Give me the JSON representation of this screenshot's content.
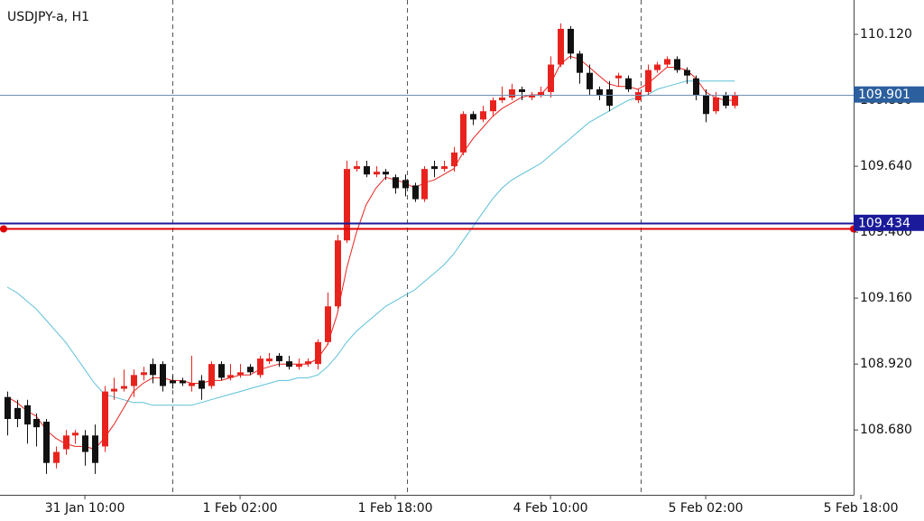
{
  "chart_data": {
    "type": "candlestick",
    "title": "USDJPY-a, H1",
    "xlim": [
      -0.75,
      87.25
    ],
    "xticks": [
      {
        "value": 8,
        "label": "31 Jan 10:00"
      },
      {
        "value": 24,
        "label": "1 Feb 02:00"
      },
      {
        "value": 40,
        "label": "1 Feb 18:00"
      },
      {
        "value": 56,
        "label": "4 Feb 10:00"
      },
      {
        "value": 72,
        "label": "5 Feb 02:00"
      },
      {
        "value": 88,
        "label": "5 Feb 18:00"
      }
    ],
    "ylim": [
      108.444,
      110.245
    ],
    "yticks": [
      {
        "value": 110.12,
        "label": "110.120"
      },
      {
        "value": 109.88,
        "label": "109.880"
      },
      {
        "value": 109.64,
        "label": "109.640"
      },
      {
        "value": 109.4,
        "label": "109.400"
      },
      {
        "value": 109.16,
        "label": "109.160"
      },
      {
        "value": 108.92,
        "label": "108.920"
      },
      {
        "value": 108.68,
        "label": "108.680"
      }
    ],
    "up_color": "#e8231e",
    "down_color": "#111111",
    "open": [
      108.8,
      108.76,
      108.77,
      108.72,
      108.71,
      108.56,
      108.61,
      108.66,
      108.66,
      108.66,
      108.62,
      108.82,
      108.83,
      108.84,
      108.88,
      108.92,
      108.92,
      108.86,
      108.86,
      108.84,
      108.86,
      108.84,
      108.92,
      108.87,
      108.88,
      108.91,
      108.88,
      108.93,
      108.95,
      108.93,
      108.91,
      108.92,
      108.92,
      109.0,
      109.13,
      109.37,
      109.63,
      109.64,
      109.61,
      109.62,
      109.6,
      109.59,
      109.57,
      109.52,
      109.64,
      109.63,
      109.64,
      109.69,
      109.83,
      109.81,
      109.84,
      109.88,
      109.89,
      109.92,
      109.89,
      109.9,
      109.91,
      110.01,
      110.14,
      110.05,
      109.98,
      109.92,
      109.92,
      109.96,
      109.96,
      109.88,
      109.91,
      109.99,
      110.01,
      110.03,
      109.99,
      109.96,
      109.9,
      109.84,
      109.9,
      109.86
    ],
    "high": [
      108.82,
      108.79,
      108.79,
      108.74,
      108.72,
      108.62,
      108.68,
      108.68,
      108.68,
      108.7,
      108.84,
      108.87,
      108.9,
      108.9,
      108.91,
      108.94,
      108.93,
      108.88,
      108.87,
      108.95,
      108.88,
      108.93,
      108.93,
      108.92,
      108.92,
      108.92,
      108.95,
      108.96,
      108.96,
      108.95,
      108.94,
      108.94,
      109.01,
      109.18,
      109.39,
      109.66,
      109.66,
      109.66,
      109.64,
      109.63,
      109.61,
      109.61,
      109.58,
      109.64,
      109.66,
      109.66,
      109.71,
      109.84,
      109.84,
      109.86,
      109.89,
      109.93,
      109.94,
      109.93,
      109.91,
      109.93,
      110.04,
      110.16,
      110.15,
      110.06,
      110.01,
      109.93,
      109.95,
      109.98,
      109.97,
      109.92,
      110.01,
      110.02,
      110.04,
      110.04,
      110.0,
      109.97,
      109.92,
      109.91,
      109.91,
      109.91
    ],
    "low": [
      108.66,
      108.69,
      108.63,
      108.62,
      108.52,
      108.54,
      108.59,
      108.63,
      108.55,
      108.52,
      108.6,
      108.79,
      108.82,
      108.8,
      108.86,
      108.85,
      108.82,
      108.83,
      108.84,
      108.82,
      108.79,
      108.83,
      108.86,
      108.86,
      108.87,
      108.88,
      108.87,
      108.92,
      108.91,
      108.9,
      108.9,
      108.91,
      108.9,
      108.99,
      109.12,
      109.36,
      109.62,
      109.6,
      109.6,
      109.59,
      109.54,
      109.53,
      109.51,
      109.51,
      109.6,
      109.62,
      109.62,
      109.68,
      109.79,
      109.8,
      109.82,
      109.87,
      109.88,
      109.88,
      109.88,
      109.89,
      109.89,
      110.0,
      110.03,
      109.94,
      109.9,
      109.88,
      109.84,
      109.93,
      109.91,
      109.87,
      109.9,
      109.98,
      110.0,
      109.98,
      109.94,
      109.88,
      109.8,
      109.83,
      109.85,
      109.85
    ],
    "close": [
      108.72,
      108.72,
      108.7,
      108.69,
      108.56,
      108.6,
      108.66,
      108.67,
      108.6,
      108.56,
      108.82,
      108.83,
      108.84,
      108.88,
      108.89,
      108.88,
      108.84,
      108.85,
      108.85,
      108.85,
      108.83,
      108.92,
      108.87,
      108.88,
      108.89,
      108.89,
      108.94,
      108.94,
      108.93,
      108.91,
      108.92,
      108.93,
      109.0,
      109.13,
      109.37,
      109.63,
      109.64,
      109.61,
      109.62,
      109.61,
      109.56,
      109.56,
      109.52,
      109.63,
      109.63,
      109.64,
      109.69,
      109.83,
      109.81,
      109.84,
      109.88,
      109.89,
      109.92,
      109.91,
      109.9,
      109.91,
      110.01,
      110.14,
      110.05,
      109.98,
      109.92,
      109.9,
      109.86,
      109.97,
      109.92,
      109.91,
      109.99,
      110.01,
      110.03,
      109.99,
      109.97,
      109.9,
      109.83,
      109.89,
      109.86,
      109.9
    ],
    "lines": [
      {
        "color": "#5bc0d8",
        "values": [
          109.2,
          109.18,
          109.15,
          109.12,
          109.08,
          109.04,
          109.0,
          108.95,
          108.9,
          108.85,
          108.81,
          108.8,
          108.79,
          108.78,
          108.78,
          108.77,
          108.77,
          108.77,
          108.77,
          108.77,
          108.78,
          108.79,
          108.8,
          108.81,
          108.82,
          108.83,
          108.84,
          108.85,
          108.86,
          108.86,
          108.87,
          108.87,
          108.88,
          108.91,
          108.95,
          109.0,
          109.04,
          109.07,
          109.1,
          109.13,
          109.15,
          109.17,
          109.19,
          109.22,
          109.25,
          109.28,
          109.32,
          109.37,
          109.42,
          109.47,
          109.52,
          109.56,
          109.59,
          109.61,
          109.63,
          109.65,
          109.68,
          109.71,
          109.74,
          109.77,
          109.8,
          109.82,
          109.84,
          109.86,
          109.88,
          109.89,
          109.9,
          109.92,
          109.93,
          109.94,
          109.95,
          109.95,
          109.95,
          109.95,
          109.95,
          109.95
        ]
      },
      {
        "color": "#e8231e",
        "values": [
          108.8,
          108.78,
          108.75,
          108.73,
          108.68,
          108.65,
          108.63,
          108.62,
          108.62,
          108.61,
          108.65,
          108.7,
          108.76,
          108.82,
          108.85,
          108.87,
          108.87,
          108.86,
          108.86,
          108.85,
          108.85,
          108.86,
          108.86,
          108.87,
          108.88,
          108.88,
          108.9,
          108.91,
          108.92,
          108.92,
          108.92,
          108.92,
          108.94,
          108.99,
          109.1,
          109.27,
          109.4,
          109.5,
          109.56,
          109.6,
          109.59,
          109.58,
          109.56,
          109.58,
          109.59,
          109.61,
          109.63,
          109.69,
          109.74,
          109.78,
          109.82,
          109.85,
          109.87,
          109.89,
          109.9,
          109.9,
          109.94,
          110.01,
          110.04,
          110.03,
          110.0,
          109.97,
          109.94,
          109.93,
          109.93,
          109.92,
          109.94,
          109.97,
          110.0,
          110.0,
          109.99,
          109.96,
          109.91,
          109.89,
          109.88,
          109.88
        ]
      }
    ],
    "hlines": [
      {
        "value": 109.901,
        "color": "#6f8fb0",
        "label_color": "#2b5f9e",
        "labeled": true
      },
      {
        "value": 109.414,
        "color": "#e00000",
        "label_color": "#e00000",
        "labeled": false
      },
      {
        "value": 109.434,
        "color": "#1a1a9a",
        "label_color": "#1a1a9a",
        "labeled": true
      }
    ]
  }
}
